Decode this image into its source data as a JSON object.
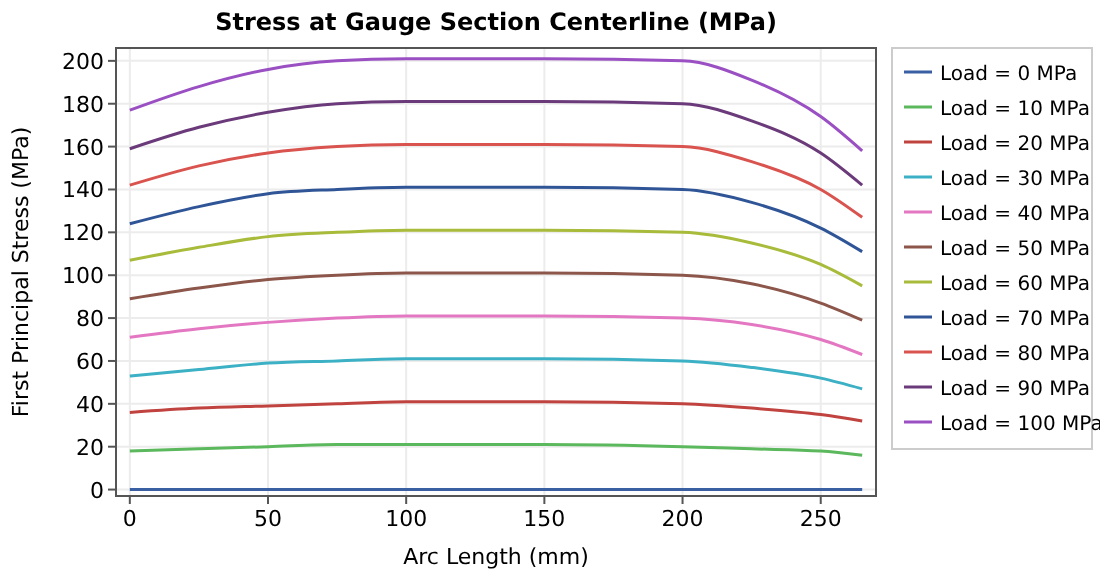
{
  "chart_data": {
    "type": "line",
    "title": "Stress at Gauge Section Centerline (MPa)",
    "xlabel": "Arc Length (mm)",
    "ylabel": "First Principal Stress (MPa)",
    "x": [
      0,
      25,
      50,
      75,
      100,
      150,
      200,
      225,
      250,
      265
    ],
    "xlim": [
      -5,
      270
    ],
    "xticks": [
      0,
      50,
      100,
      150,
      200,
      250
    ],
    "ylim": [
      -3,
      206
    ],
    "yticks": [
      0,
      20,
      40,
      60,
      80,
      100,
      120,
      140,
      160,
      180,
      200
    ],
    "grid": true,
    "legend": "right",
    "line_style": "solid",
    "marker": "none",
    "series": [
      {
        "name": "Load = 0 MPa",
        "color": "#3b5fa3",
        "values": [
          0,
          0,
          0,
          0,
          0,
          0,
          0,
          0,
          0,
          0
        ]
      },
      {
        "name": "Load = 10 MPa",
        "color": "#5cb85c",
        "values": [
          18,
          19,
          20,
          21,
          21,
          21,
          20,
          19,
          18,
          16
        ]
      },
      {
        "name": "Load = 20 MPa",
        "color": "#c0433f",
        "values": [
          36,
          38,
          39,
          40,
          41,
          41,
          40,
          38,
          35,
          32
        ]
      },
      {
        "name": "Load = 30 MPa",
        "color": "#3cb0c4",
        "values": [
          53,
          56,
          59,
          60,
          61,
          61,
          60,
          57,
          52,
          47
        ]
      },
      {
        "name": "Load = 40 MPa",
        "color": "#e377c2",
        "values": [
          71,
          75,
          78,
          80,
          81,
          81,
          80,
          77,
          70,
          63
        ]
      },
      {
        "name": "Load = 50 MPa",
        "color": "#8c564b",
        "values": [
          89,
          94,
          98,
          100,
          101,
          101,
          100,
          96,
          87,
          79
        ]
      },
      {
        "name": "Load = 60 MPa",
        "color": "#a9bb3a",
        "values": [
          107,
          113,
          118,
          120,
          121,
          121,
          120,
          115,
          105,
          95
        ]
      },
      {
        "name": "Load = 70 MPa",
        "color": "#2f5597",
        "values": [
          124,
          132,
          138,
          140,
          141,
          141,
          140,
          134,
          122,
          111
        ]
      },
      {
        "name": "Load = 80 MPa",
        "color": "#d9534f",
        "values": [
          142,
          151,
          157,
          160,
          161,
          161,
          160,
          153,
          140,
          127
        ]
      },
      {
        "name": "Load = 90 MPa",
        "color": "#6b3a7a",
        "values": [
          159,
          169,
          176,
          180,
          181,
          181,
          180,
          172,
          157,
          142
        ]
      },
      {
        "name": "Load = 100 MPa",
        "color": "#9a4fc2",
        "values": [
          177,
          188,
          196,
          200,
          201,
          201,
          200,
          191,
          174,
          158
        ]
      }
    ]
  }
}
